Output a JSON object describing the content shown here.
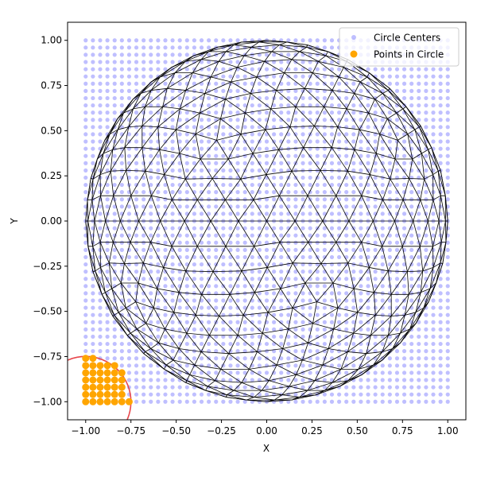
{
  "chart_data": {
    "type": "scatter",
    "title": "",
    "xlabel": "X",
    "ylabel": "Y",
    "xlim": [
      -1.1,
      1.1
    ],
    "ylim": [
      -1.1,
      1.1
    ],
    "xticks": [
      -1.0,
      -0.75,
      -0.5,
      -0.25,
      0.0,
      0.25,
      0.5,
      0.75,
      1.0
    ],
    "yticks": [
      -1.0,
      -0.75,
      -0.5,
      -0.25,
      0.0,
      0.25,
      0.5,
      0.75,
      1.0
    ],
    "xtick_labels": [
      "−1.00",
      "−0.75",
      "−0.50",
      "−0.25",
      "0.00",
      "0.25",
      "0.50",
      "0.75",
      "1.00"
    ],
    "ytick_labels": [
      "−1.00",
      "−0.75",
      "−0.50",
      "−0.25",
      "0.00",
      "0.25",
      "0.50",
      "0.75",
      "1.00"
    ],
    "grid": false,
    "legend_position": "top-right",
    "series": [
      {
        "name": "Circle Centers",
        "color": "#0000ff",
        "opacity": 0.25,
        "grid_x_range": [
          -1.0,
          1.0
        ],
        "grid_y_range": [
          -1.0,
          1.0
        ],
        "grid_step": 0.04
      },
      {
        "name": "Points in Circle",
        "color": "#ffa500",
        "points": [
          [
            -1.0,
            -1.0
          ],
          [
            -0.96,
            -1.0
          ],
          [
            -0.92,
            -1.0
          ],
          [
            -0.88,
            -1.0
          ],
          [
            -0.84,
            -1.0
          ],
          [
            -0.8,
            -1.0
          ],
          [
            -0.76,
            -1.0
          ],
          [
            -1.0,
            -0.96
          ],
          [
            -0.96,
            -0.96
          ],
          [
            -0.92,
            -0.96
          ],
          [
            -0.88,
            -0.96
          ],
          [
            -0.84,
            -0.96
          ],
          [
            -0.8,
            -0.96
          ],
          [
            -1.0,
            -0.92
          ],
          [
            -0.96,
            -0.92
          ],
          [
            -0.92,
            -0.92
          ],
          [
            -0.88,
            -0.92
          ],
          [
            -0.84,
            -0.92
          ],
          [
            -0.8,
            -0.92
          ],
          [
            -1.0,
            -0.88
          ],
          [
            -0.96,
            -0.88
          ],
          [
            -0.92,
            -0.88
          ],
          [
            -0.88,
            -0.88
          ],
          [
            -0.84,
            -0.88
          ],
          [
            -0.8,
            -0.88
          ],
          [
            -1.0,
            -0.84
          ],
          [
            -0.96,
            -0.84
          ],
          [
            -0.92,
            -0.84
          ],
          [
            -0.88,
            -0.84
          ],
          [
            -0.84,
            -0.84
          ],
          [
            -0.8,
            -0.84
          ],
          [
            -1.0,
            -0.8
          ],
          [
            -0.96,
            -0.8
          ],
          [
            -0.92,
            -0.8
          ],
          [
            -0.88,
            -0.8
          ],
          [
            -0.84,
            -0.8
          ],
          [
            -1.0,
            -0.76
          ],
          [
            -0.96,
            -0.76
          ]
        ]
      }
    ],
    "query_circle": {
      "center": [
        -1.0,
        -1.0
      ],
      "radius": 0.25,
      "color": "#e8474c"
    },
    "geodesic_sphere": {
      "center": [
        0.0,
        0.0
      ],
      "radius": 1.0,
      "color": "#000000"
    }
  }
}
